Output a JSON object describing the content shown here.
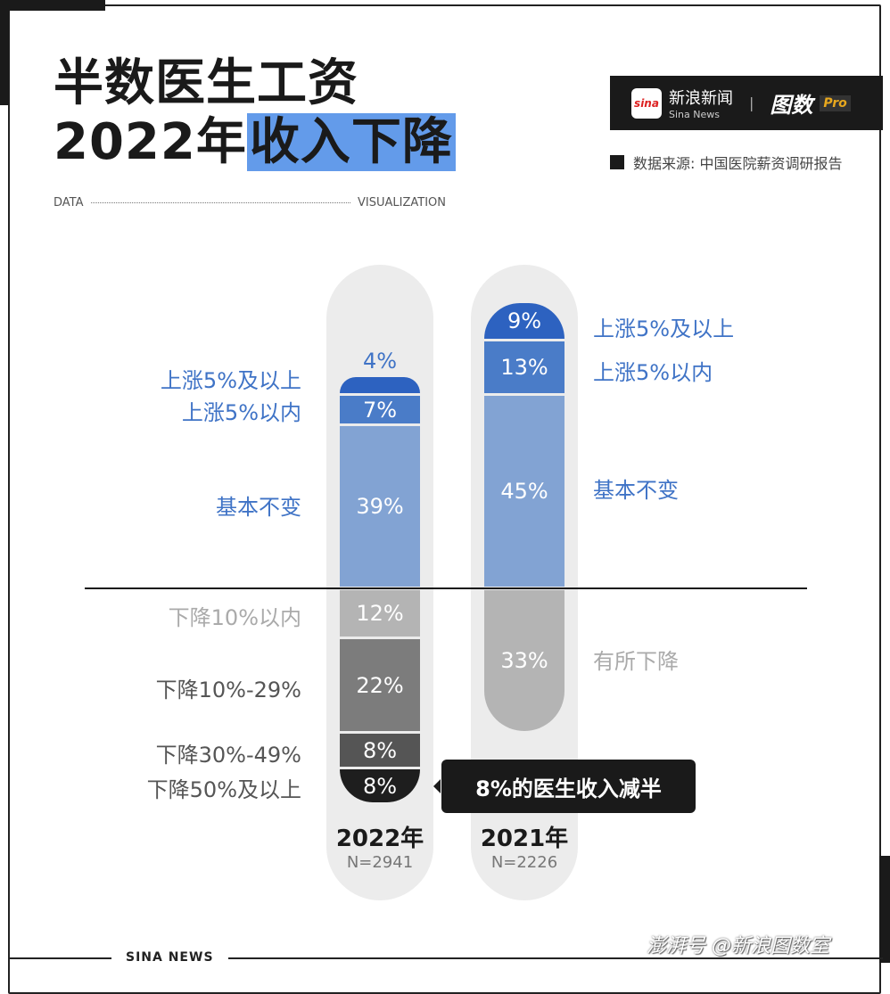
{
  "title": {
    "line1": "半数医生工资",
    "line2_plain": "2022年",
    "line2_highlight": "收入下降"
  },
  "tagline": {
    "left": "DATA",
    "right": "VISUALIZATION"
  },
  "brand": {
    "name_cn": "新浪新闻",
    "name_en": "Sina News",
    "logo_text": "sina",
    "product": "图数",
    "product_tag": "Pro"
  },
  "source": "数据来源: 中国医院薪资调研报告",
  "chart_data": {
    "type": "stacked-bar",
    "series": [
      {
        "year": "2022年",
        "n": "N=2941",
        "segments": [
          {
            "label": "上涨5%及以上",
            "value": 4,
            "text": "4%",
            "color": "#2d62c0"
          },
          {
            "label": "上涨5%以内",
            "value": 7,
            "text": "7%",
            "color": "#4a7cc8"
          },
          {
            "label": "基本不变",
            "value": 39,
            "text": "39%",
            "color": "#82a3d3"
          },
          {
            "label": "下降10%以内",
            "value": 12,
            "text": "12%",
            "color": "#b4b4b4"
          },
          {
            "label": "下降10%-29%",
            "value": 22,
            "text": "22%",
            "color": "#7c7c7c"
          },
          {
            "label": "下降30%-49%",
            "value": 8,
            "text": "8%",
            "color": "#555555"
          },
          {
            "label": "下降50%及以上",
            "value": 8,
            "text": "8%",
            "color": "#1e1e1e"
          }
        ]
      },
      {
        "year": "2021年",
        "n": "N=2226",
        "segments": [
          {
            "label": "上涨5%及以上",
            "value": 9,
            "text": "9%",
            "color": "#2d62c0"
          },
          {
            "label": "上涨5%以内",
            "value": 13,
            "text": "13%",
            "color": "#4a7cc8"
          },
          {
            "label": "基本不变",
            "value": 45,
            "text": "45%",
            "color": "#82a3d3"
          },
          {
            "label": "有所下降",
            "value": 33,
            "text": "33%",
            "color": "#b4b4b4"
          }
        ]
      }
    ],
    "annotation": "8%的医生收入减半"
  },
  "footer": "SINA  NEWS",
  "watermark": "澎湃号 @新浪图数室"
}
